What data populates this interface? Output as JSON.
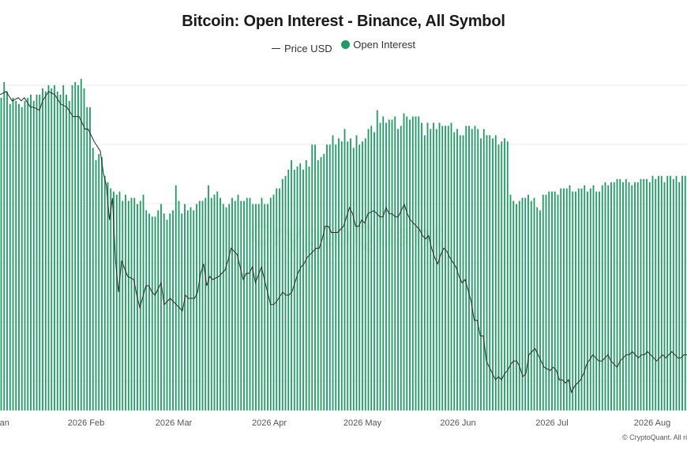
{
  "chart_data": {
    "type": "bar",
    "title": "Bitcoin: Open Interest - Binance, All Symbol",
    "legend": {
      "placement": "top-center",
      "price_label": "Price USD",
      "oi_label": "Open Interest"
    },
    "colors": {
      "bars": "#1e9a63",
      "price_line": "#2b2b2b",
      "gridline": "#ebebeb"
    },
    "grid": true,
    "x_ticks": [
      "Jan",
      "2026 Feb",
      "2026 Mar",
      "2026 Apr",
      "2026 May",
      "2026 Jun",
      "2026 Jul",
      "2026 Aug"
    ],
    "series": [
      {
        "name": "Open Interest",
        "values": [
          100,
          105,
          102,
          98,
          100,
          99,
          98,
          97,
          99,
          100,
          101,
          99,
          101,
          101,
          103,
          102,
          104,
          103,
          104,
          102,
          101,
          104,
          101,
          99,
          104,
          105,
          104,
          106,
          103,
          97,
          97,
          84,
          80,
          82,
          81,
          75,
          73,
          71,
          70,
          69,
          70,
          67,
          69,
          67,
          68,
          68,
          66,
          67,
          69,
          64,
          63,
          62,
          62,
          64,
          66,
          63,
          61,
          63,
          64,
          72,
          67,
          63,
          66,
          64,
          65,
          64,
          66,
          67,
          67,
          68,
          72,
          68,
          69,
          70,
          68,
          66,
          65,
          66,
          68,
          67,
          69,
          67,
          67,
          68,
          68,
          66,
          66,
          66,
          68,
          66,
          66,
          68,
          69,
          71,
          71,
          74,
          75,
          77,
          80,
          77,
          78,
          79,
          77,
          80,
          78,
          85,
          85,
          80,
          81,
          82,
          85,
          85,
          88,
          85,
          87,
          86,
          90,
          86,
          87,
          84,
          88,
          85,
          86,
          87,
          90,
          91,
          89,
          96,
          92,
          94,
          92,
          93,
          93,
          94,
          90,
          91,
          95,
          94,
          93,
          94,
          94,
          94,
          92,
          88,
          92,
          90,
          92,
          90,
          92,
          91,
          91,
          91,
          92,
          89,
          90,
          88,
          88,
          91,
          91,
          90,
          91,
          90,
          87,
          90,
          88,
          88,
          87,
          88,
          85,
          86,
          87,
          86,
          69,
          67,
          66,
          67,
          68,
          68,
          69,
          67,
          68,
          65,
          64,
          69,
          69,
          70,
          70,
          70,
          69,
          71,
          71,
          71,
          72,
          70,
          70,
          71,
          71,
          72,
          70,
          71,
          72,
          70,
          70,
          72,
          73,
          72,
          73,
          73,
          74,
          74,
          73,
          74,
          73,
          72,
          73,
          73,
          74,
          74,
          74,
          73,
          75,
          74,
          75,
          75,
          73,
          75,
          75,
          74,
          75,
          73,
          75,
          75
        ],
        "unit": "relative"
      },
      {
        "name": "Price USD",
        "points": [
          [
            0,
            95
          ],
          [
            2,
            96
          ],
          [
            4,
            93
          ],
          [
            6,
            94
          ],
          [
            7,
            93
          ],
          [
            8,
            94
          ],
          [
            10,
            91
          ],
          [
            11,
            91
          ],
          [
            13,
            90
          ],
          [
            14,
            93
          ],
          [
            16,
            96
          ],
          [
            18,
            95
          ],
          [
            20,
            92
          ],
          [
            22,
            91
          ],
          [
            24,
            88
          ],
          [
            26,
            88
          ],
          [
            28,
            84
          ],
          [
            29,
            84
          ],
          [
            31,
            80
          ],
          [
            33,
            77
          ],
          [
            34,
            70
          ],
          [
            35,
            66
          ],
          [
            36,
            55
          ],
          [
            37,
            62
          ],
          [
            38,
            42
          ],
          [
            39,
            32
          ],
          [
            40,
            42
          ],
          [
            42,
            37
          ],
          [
            44,
            36
          ],
          [
            45,
            31
          ],
          [
            46,
            27
          ],
          [
            48,
            34
          ],
          [
            49,
            34
          ],
          [
            50,
            32
          ],
          [
            51,
            31
          ],
          [
            53,
            35
          ],
          [
            54,
            28
          ],
          [
            55,
            29
          ],
          [
            56,
            30
          ],
          [
            57,
            29
          ],
          [
            58,
            28
          ],
          [
            60,
            26
          ],
          [
            61,
            31
          ],
          [
            62,
            30
          ],
          [
            64,
            30
          ],
          [
            65,
            32
          ],
          [
            66,
            38
          ],
          [
            67,
            41
          ],
          [
            68,
            34
          ],
          [
            69,
            37
          ],
          [
            70,
            36
          ],
          [
            72,
            37
          ],
          [
            73,
            38
          ],
          [
            74,
            39
          ],
          [
            75,
            42
          ],
          [
            76,
            46
          ],
          [
            78,
            44
          ],
          [
            79,
            40
          ],
          [
            80,
            36
          ],
          [
            81,
            38
          ],
          [
            82,
            38
          ],
          [
            83,
            40
          ],
          [
            84,
            35
          ],
          [
            86,
            40
          ],
          [
            88,
            32
          ],
          [
            89,
            28
          ],
          [
            90,
            28
          ],
          [
            91,
            29
          ],
          [
            93,
            32
          ],
          [
            94,
            31
          ],
          [
            95,
            31
          ],
          [
            96,
            32
          ],
          [
            98,
            38
          ],
          [
            99,
            40
          ],
          [
            100,
            41
          ],
          [
            101,
            43
          ],
          [
            102,
            44
          ],
          [
            103,
            45
          ],
          [
            104,
            46
          ],
          [
            105,
            46
          ],
          [
            106,
            49
          ],
          [
            107,
            53
          ],
          [
            108,
            53
          ],
          [
            109,
            51
          ],
          [
            110,
            51
          ],
          [
            111,
            51
          ],
          [
            112,
            52
          ],
          [
            113,
            53
          ],
          [
            114,
            56
          ],
          [
            115,
            59
          ],
          [
            116,
            57
          ],
          [
            117,
            53
          ],
          [
            118,
            53
          ],
          [
            119,
            55
          ],
          [
            120,
            54
          ],
          [
            121,
            57
          ],
          [
            123,
            58
          ],
          [
            125,
            56
          ],
          [
            126,
            56
          ],
          [
            127,
            59
          ],
          [
            128,
            57
          ],
          [
            129,
            57
          ],
          [
            130,
            56
          ],
          [
            131,
            56
          ],
          [
            132,
            58
          ],
          [
            133,
            60
          ],
          [
            134,
            57
          ],
          [
            135,
            55
          ],
          [
            137,
            53
          ],
          [
            138,
            52
          ],
          [
            139,
            50
          ],
          [
            140,
            49
          ],
          [
            141,
            50
          ],
          [
            142,
            46
          ],
          [
            143,
            43
          ],
          [
            144,
            41
          ],
          [
            145,
            44
          ],
          [
            146,
            46
          ],
          [
            147,
            45
          ],
          [
            148,
            43
          ],
          [
            150,
            40
          ],
          [
            151,
            37
          ],
          [
            152,
            35
          ],
          [
            153,
            36
          ],
          [
            155,
            29
          ],
          [
            156,
            23
          ],
          [
            157,
            23
          ],
          [
            158,
            18
          ],
          [
            159,
            18
          ],
          [
            160,
            10
          ],
          [
            162,
            6
          ],
          [
            163,
            4
          ],
          [
            164,
            5
          ],
          [
            165,
            4
          ],
          [
            166,
            6
          ],
          [
            167,
            7
          ],
          [
            168,
            9
          ],
          [
            169,
            10
          ],
          [
            170,
            10
          ],
          [
            171,
            8
          ],
          [
            172,
            5
          ],
          [
            173,
            6
          ],
          [
            174,
            12
          ],
          [
            175,
            13
          ],
          [
            176,
            14
          ],
          [
            177,
            12
          ],
          [
            178,
            10
          ],
          [
            179,
            8
          ],
          [
            181,
            7
          ],
          [
            182,
            8
          ],
          [
            183,
            7
          ],
          [
            184,
            4
          ],
          [
            185,
            4
          ],
          [
            186,
            3
          ],
          [
            187,
            4
          ],
          [
            188,
            0
          ],
          [
            189,
            2
          ],
          [
            190,
            3
          ],
          [
            191,
            4
          ],
          [
            192,
            6
          ],
          [
            193,
            9
          ],
          [
            195,
            12
          ],
          [
            196,
            11
          ],
          [
            197,
            10
          ],
          [
            198,
            10
          ],
          [
            199,
            11
          ],
          [
            200,
            12
          ],
          [
            201,
            10
          ],
          [
            202,
            9
          ],
          [
            203,
            8
          ],
          [
            204,
            10
          ],
          [
            205,
            11
          ],
          [
            206,
            12
          ],
          [
            207,
            12
          ],
          [
            208,
            13
          ],
          [
            209,
            12
          ],
          [
            210,
            11
          ],
          [
            211,
            12
          ],
          [
            212,
            12
          ],
          [
            213,
            13
          ],
          [
            214,
            12
          ],
          [
            215,
            11
          ],
          [
            216,
            10
          ],
          [
            217,
            11
          ],
          [
            218,
            12
          ],
          [
            219,
            11
          ],
          [
            220,
            12
          ],
          [
            221,
            13
          ],
          [
            222,
            12
          ],
          [
            223,
            11
          ],
          [
            224,
            11
          ],
          [
            225,
            12
          ],
          [
            226,
            12
          ]
        ],
        "unit": "relative"
      }
    ]
  },
  "watermark": "CryptoQuant",
  "credit": "© CryptoQuant. All rights reserved."
}
